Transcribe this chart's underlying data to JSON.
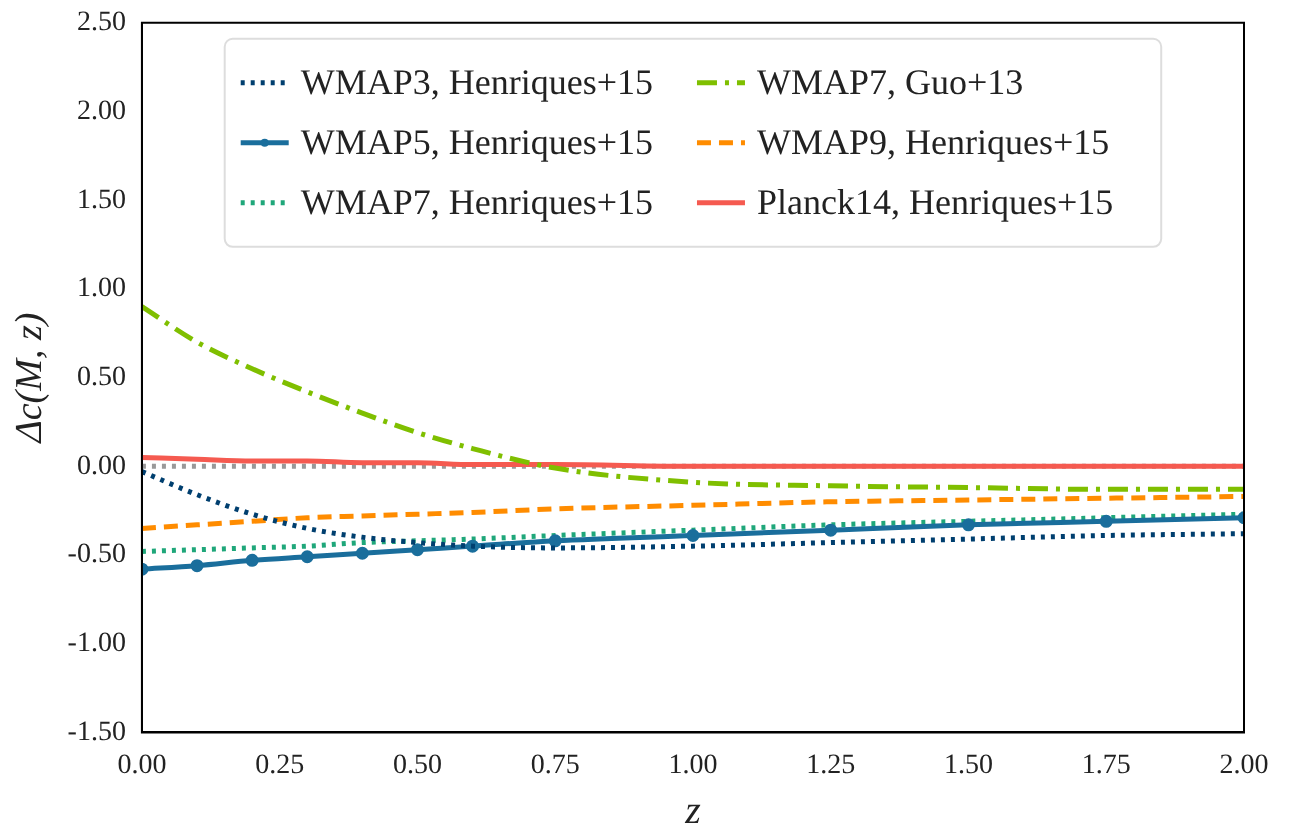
{
  "chart_data": {
    "type": "line",
    "xlabel": "z",
    "ylabel": "Δc(M, z)",
    "legend": "top",
    "grid": false,
    "x": [
      0,
      0.1,
      0.2,
      0.3,
      0.4,
      0.5,
      0.6,
      0.75,
      1.0,
      1.25,
      1.5,
      1.75,
      2.0
    ],
    "xlim": [
      0,
      2
    ],
    "xticks": [
      {
        "value": 0,
        "label": "0.00"
      },
      {
        "value": 0.25,
        "label": "0.25"
      },
      {
        "value": 0.5,
        "label": "0.50"
      },
      {
        "value": 0.75,
        "label": "0.75"
      },
      {
        "value": 1,
        "label": "1.00"
      },
      {
        "value": 1.25,
        "label": "1.25"
      },
      {
        "value": 1.5,
        "label": "1.50"
      },
      {
        "value": 1.75,
        "label": "1.75"
      },
      {
        "value": 2,
        "label": "2.00"
      }
    ],
    "ylim": [
      -1.5,
      2.5
    ],
    "yticks": [
      {
        "value": -1.5,
        "label": "-1.50"
      },
      {
        "value": -1,
        "label": "-1.00"
      },
      {
        "value": -0.5,
        "label": "-0.50"
      },
      {
        "value": 0,
        "label": "0.00"
      },
      {
        "value": 0.5,
        "label": "0.50"
      },
      {
        "value": 1,
        "label": "1.00"
      },
      {
        "value": 1.5,
        "label": "1.50"
      },
      {
        "value": 2,
        "label": "2.00"
      },
      {
        "value": 2.5,
        "label": "2.50"
      }
    ],
    "ref_lines": [
      {
        "axis": "y",
        "value": 0,
        "color": "#999999",
        "line_style": "dotted"
      }
    ],
    "series": [
      {
        "name": "WMAP3, Henriques+15",
        "color": "#003f6f",
        "line_style": "dotted",
        "marker": "none",
        "values": [
          -0.03,
          -0.16,
          -0.27,
          -0.35,
          -0.4,
          -0.43,
          -0.45,
          -0.46,
          -0.45,
          -0.43,
          -0.41,
          -0.39,
          -0.38
        ]
      },
      {
        "name": "WMAP5, Henriques+15",
        "color": "#1a6e9c",
        "line_style": "solid",
        "marker": "circle",
        "values": [
          -0.58,
          -0.56,
          -0.53,
          -0.51,
          -0.49,
          -0.47,
          -0.45,
          -0.42,
          -0.39,
          -0.36,
          -0.33,
          -0.31,
          -0.29
        ]
      },
      {
        "name": "WMAP7, Henriques+15",
        "color": "#1fa77a",
        "line_style": "dotted",
        "marker": "none",
        "values": [
          -0.48,
          -0.47,
          -0.46,
          -0.45,
          -0.43,
          -0.42,
          -0.41,
          -0.39,
          -0.36,
          -0.33,
          -0.31,
          -0.29,
          -0.27
        ]
      },
      {
        "name": "WMAP7, Guo+13",
        "color": "#7fbf00",
        "line_style": "dashdot",
        "marker": "none",
        "values": [
          0.9,
          0.7,
          0.55,
          0.42,
          0.3,
          0.19,
          0.1,
          -0.01,
          -0.09,
          -0.11,
          -0.12,
          -0.13,
          -0.13
        ]
      },
      {
        "name": "WMAP9, Henriques+15",
        "color": "#ff8c00",
        "line_style": "dashed",
        "marker": "none",
        "values": [
          -0.35,
          -0.33,
          -0.31,
          -0.29,
          -0.28,
          -0.27,
          -0.26,
          -0.24,
          -0.22,
          -0.2,
          -0.19,
          -0.18,
          -0.17
        ]
      },
      {
        "name": "Planck14, Henriques+15",
        "color": "#f55a50",
        "line_style": "solid",
        "marker": "none",
        "values": [
          0.05,
          0.04,
          0.03,
          0.03,
          0.02,
          0.02,
          0.01,
          0.01,
          0.0,
          0.0,
          0.0,
          0.0,
          0.0
        ]
      }
    ]
  }
}
